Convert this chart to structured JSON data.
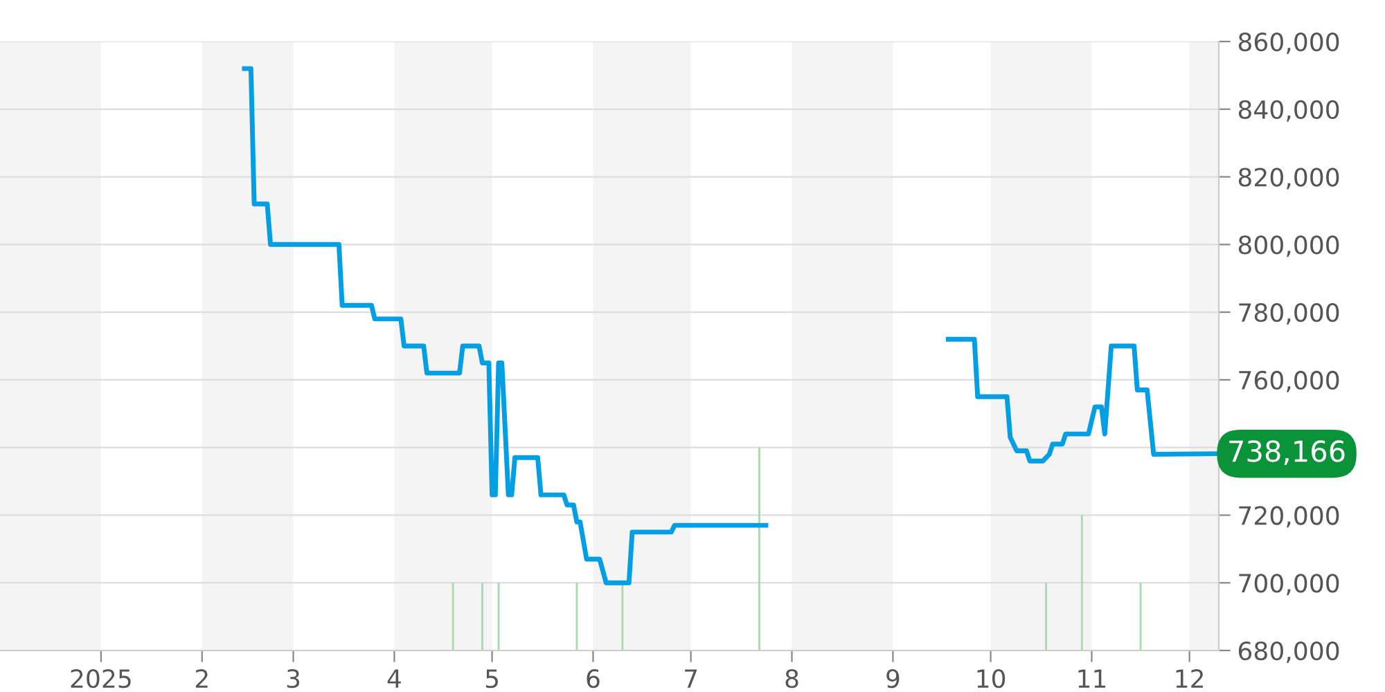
{
  "chart_data": {
    "type": "line",
    "xlim": [
      "2024-12-01",
      "2025-12-10"
    ],
    "ylim": [
      680000,
      860000
    ],
    "xticks": [
      {
        "value": "2025-01-01",
        "label": "2025"
      },
      {
        "value": "2025-02-01",
        "label": "2"
      },
      {
        "value": "2025-03-01",
        "label": "3"
      },
      {
        "value": "2025-04-01",
        "label": "4"
      },
      {
        "value": "2025-05-01",
        "label": "5"
      },
      {
        "value": "2025-06-01",
        "label": "6"
      },
      {
        "value": "2025-07-01",
        "label": "7"
      },
      {
        "value": "2025-08-01",
        "label": "8"
      },
      {
        "value": "2025-09-01",
        "label": "9"
      },
      {
        "value": "2025-10-01",
        "label": "10"
      },
      {
        "value": "2025-11-01",
        "label": "11"
      },
      {
        "value": "2025-12-01",
        "label": "12"
      }
    ],
    "yticks": [
      {
        "value": 680000,
        "label": "680,000"
      },
      {
        "value": 700000,
        "label": "700,000"
      },
      {
        "value": 720000,
        "label": "720,000"
      },
      {
        "value": 740000,
        "label": null
      },
      {
        "value": 760000,
        "label": "760,000"
      },
      {
        "value": 780000,
        "label": "780,000"
      },
      {
        "value": 800000,
        "label": "800,000"
      },
      {
        "value": 820000,
        "label": "820,000"
      },
      {
        "value": 840000,
        "label": "840,000"
      },
      {
        "value": 860000,
        "label": "860,000"
      }
    ],
    "grid": "y",
    "line_style": "solid",
    "marker": "none",
    "bands": [
      {
        "axis": "x",
        "from": "2024-12-01",
        "to": "2025-01-01",
        "color": "#f4f4f4"
      },
      {
        "axis": "x",
        "from": "2025-02-01",
        "to": "2025-03-01",
        "color": "#f4f4f4"
      },
      {
        "axis": "x",
        "from": "2025-04-01",
        "to": "2025-05-01",
        "color": "#f4f4f4"
      },
      {
        "axis": "x",
        "from": "2025-06-01",
        "to": "2025-07-01",
        "color": "#f4f4f4"
      },
      {
        "axis": "x",
        "from": "2025-08-01",
        "to": "2025-09-01",
        "color": "#f4f4f4"
      },
      {
        "axis": "x",
        "from": "2025-10-01",
        "to": "2025-11-01",
        "color": "#f4f4f4"
      },
      {
        "axis": "x",
        "from": "2025-12-01",
        "to": "2025-12-10",
        "color": "#f4f4f4"
      }
    ],
    "series": [
      {
        "type": "bar",
        "color": "#a6dca6",
        "x": [
          "2025-04-19",
          "2025-04-28",
          "2025-05-03",
          "2025-05-27",
          "2025-06-10",
          "2025-07-22",
          "2025-10-18",
          "2025-10-29",
          "2025-11-16"
        ],
        "values": [
          700000,
          700000,
          700000,
          700000,
          700000,
          740000,
          700000,
          720000,
          700000
        ]
      },
      {
        "color": "#039fe2",
        "x": [
          "2025-02-14",
          "2025-02-16",
          "2025-02-17",
          "2025-02-21",
          "2025-02-22",
          "2025-03-15",
          "2025-03-16",
          "2025-03-25",
          "2025-03-26",
          "2025-04-03",
          "2025-04-04",
          "2025-04-10",
          "2025-04-11",
          "2025-04-21",
          "2025-04-22",
          "2025-04-27",
          "2025-04-28",
          "2025-04-30",
          "2025-05-01",
          "2025-05-02",
          "2025-05-03",
          "2025-05-04",
          "2025-05-06",
          "2025-05-07",
          "2025-05-08",
          "2025-05-15",
          "2025-05-16",
          "2025-05-23",
          "2025-05-24",
          "2025-05-26",
          "2025-05-27",
          "2025-05-28",
          "2025-05-30",
          "2025-06-03",
          "2025-06-05",
          "2025-06-12",
          "2025-06-13",
          "2025-06-25",
          "2025-06-26",
          "2025-07-24",
          "2025-08-20",
          "2025-09-18",
          "2025-09-26",
          "2025-09-27",
          "2025-10-06",
          "2025-10-07",
          "2025-10-09",
          "2025-10-12",
          "2025-10-13",
          "2025-10-17",
          "2025-10-19",
          "2025-10-20",
          "2025-10-23",
          "2025-10-24",
          "2025-10-31",
          "2025-11-02",
          "2025-11-04",
          "2025-11-05",
          "2025-11-07",
          "2025-11-14",
          "2025-11-15",
          "2025-11-18",
          "2025-11-20",
          "2025-12-09"
        ],
        "values": [
          852000,
          852000,
          812000,
          812000,
          800000,
          800000,
          782000,
          782000,
          778000,
          778000,
          770000,
          770000,
          762000,
          762000,
          770000,
          770000,
          765000,
          765000,
          726000,
          726000,
          765000,
          765000,
          726000,
          726000,
          737000,
          737000,
          726000,
          726000,
          723000,
          723000,
          718000,
          718000,
          707000,
          707000,
          700000,
          700000,
          715000,
          715000,
          717000,
          717000,
          null,
          772000,
          772000,
          755000,
          755000,
          743000,
          739000,
          739000,
          736000,
          736000,
          738000,
          741000,
          741000,
          744000,
          744000,
          752000,
          752000,
          744000,
          770000,
          770000,
          757000,
          757000,
          738000,
          738166
        ]
      }
    ],
    "annotations": [
      {
        "text": "738,166",
        "x": "2025-12-09",
        "y": 738166
      }
    ]
  }
}
